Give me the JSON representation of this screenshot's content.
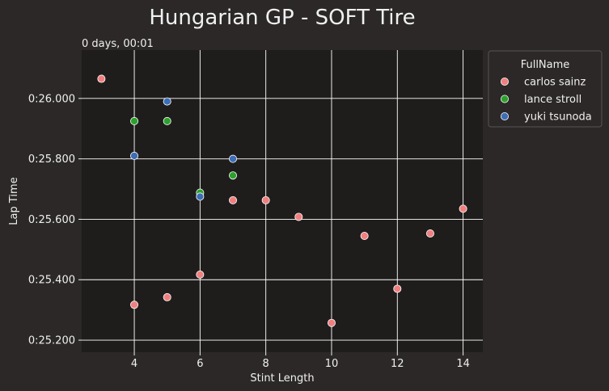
{
  "chart_data": {
    "type": "scatter",
    "title": "Hungarian GP - SOFT Tire",
    "xlabel": "Stint Length",
    "ylabel": "Lap Time",
    "offset_text": "0 days, 00:01",
    "xlim": [
      2.4,
      14.6
    ],
    "ylim": [
      25.16,
      26.16
    ],
    "x_ticks": [
      4,
      6,
      8,
      10,
      12,
      14
    ],
    "x_tick_labels": [
      "4",
      "6",
      "8",
      "10",
      "12",
      "14"
    ],
    "y_ticks": [
      25.2,
      25.4,
      25.6,
      25.8,
      26.0
    ],
    "y_tick_labels": [
      "0:25.200",
      "0:25.400",
      "0:25.600",
      "0:25.800",
      "0:26.000"
    ],
    "grid": true,
    "legend": {
      "title": "FullName",
      "placement": "outside-right"
    },
    "series": [
      {
        "name": "carlos sainz",
        "color": "#f08080",
        "points": [
          {
            "x": 3,
            "y": 26.065
          },
          {
            "x": 4,
            "y": 25.317
          },
          {
            "x": 5,
            "y": 25.342
          },
          {
            "x": 6,
            "y": 25.417
          },
          {
            "x": 7,
            "y": 25.663
          },
          {
            "x": 8,
            "y": 25.663
          },
          {
            "x": 9,
            "y": 25.608
          },
          {
            "x": 10,
            "y": 25.257
          },
          {
            "x": 11,
            "y": 25.545
          },
          {
            "x": 12,
            "y": 25.37
          },
          {
            "x": 13,
            "y": 25.553
          },
          {
            "x": 14,
            "y": 25.635
          }
        ]
      },
      {
        "name": "lance stroll",
        "color": "#2ca02c",
        "points": [
          {
            "x": 4,
            "y": 25.925
          },
          {
            "x": 5,
            "y": 25.925
          },
          {
            "x": 6,
            "y": 25.688
          },
          {
            "x": 7,
            "y": 25.745
          }
        ]
      },
      {
        "name": "yuki tsunoda",
        "color": "#3d6db5",
        "points": [
          {
            "x": 4,
            "y": 25.81
          },
          {
            "x": 5,
            "y": 25.99
          },
          {
            "x": 6,
            "y": 25.675
          },
          {
            "x": 7,
            "y": 25.8
          }
        ]
      }
    ]
  }
}
